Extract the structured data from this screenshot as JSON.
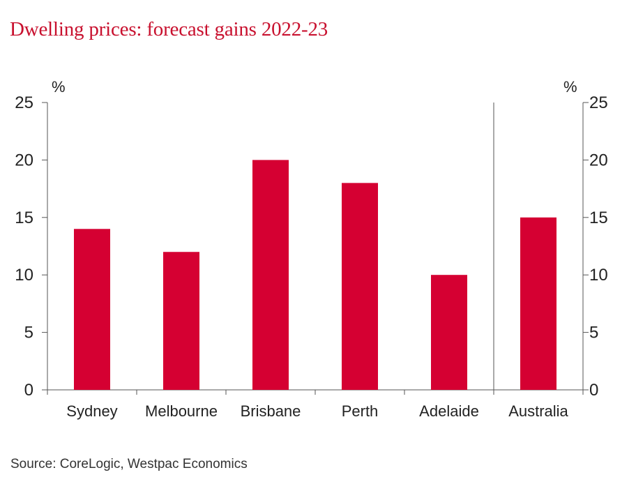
{
  "title": "Dwelling prices: forecast gains 2022-23",
  "source": "Source: CoreLogic, Westpac Economics",
  "chart_data": {
    "type": "bar",
    "title": "Dwelling prices: forecast gains 2022-23",
    "categories": [
      "Sydney",
      "Melbourne",
      "Brisbane",
      "Perth",
      "Adelaide",
      "Australia"
    ],
    "values": [
      14,
      12,
      20,
      18,
      10,
      15
    ],
    "y_unit_left": "%",
    "y_unit_right": "%",
    "ylim": [
      0,
      25
    ],
    "yticks": [
      0,
      5,
      10,
      15,
      20,
      25
    ],
    "grid": false,
    "bar_color": "#d50032",
    "separator_before_last_category": true
  }
}
